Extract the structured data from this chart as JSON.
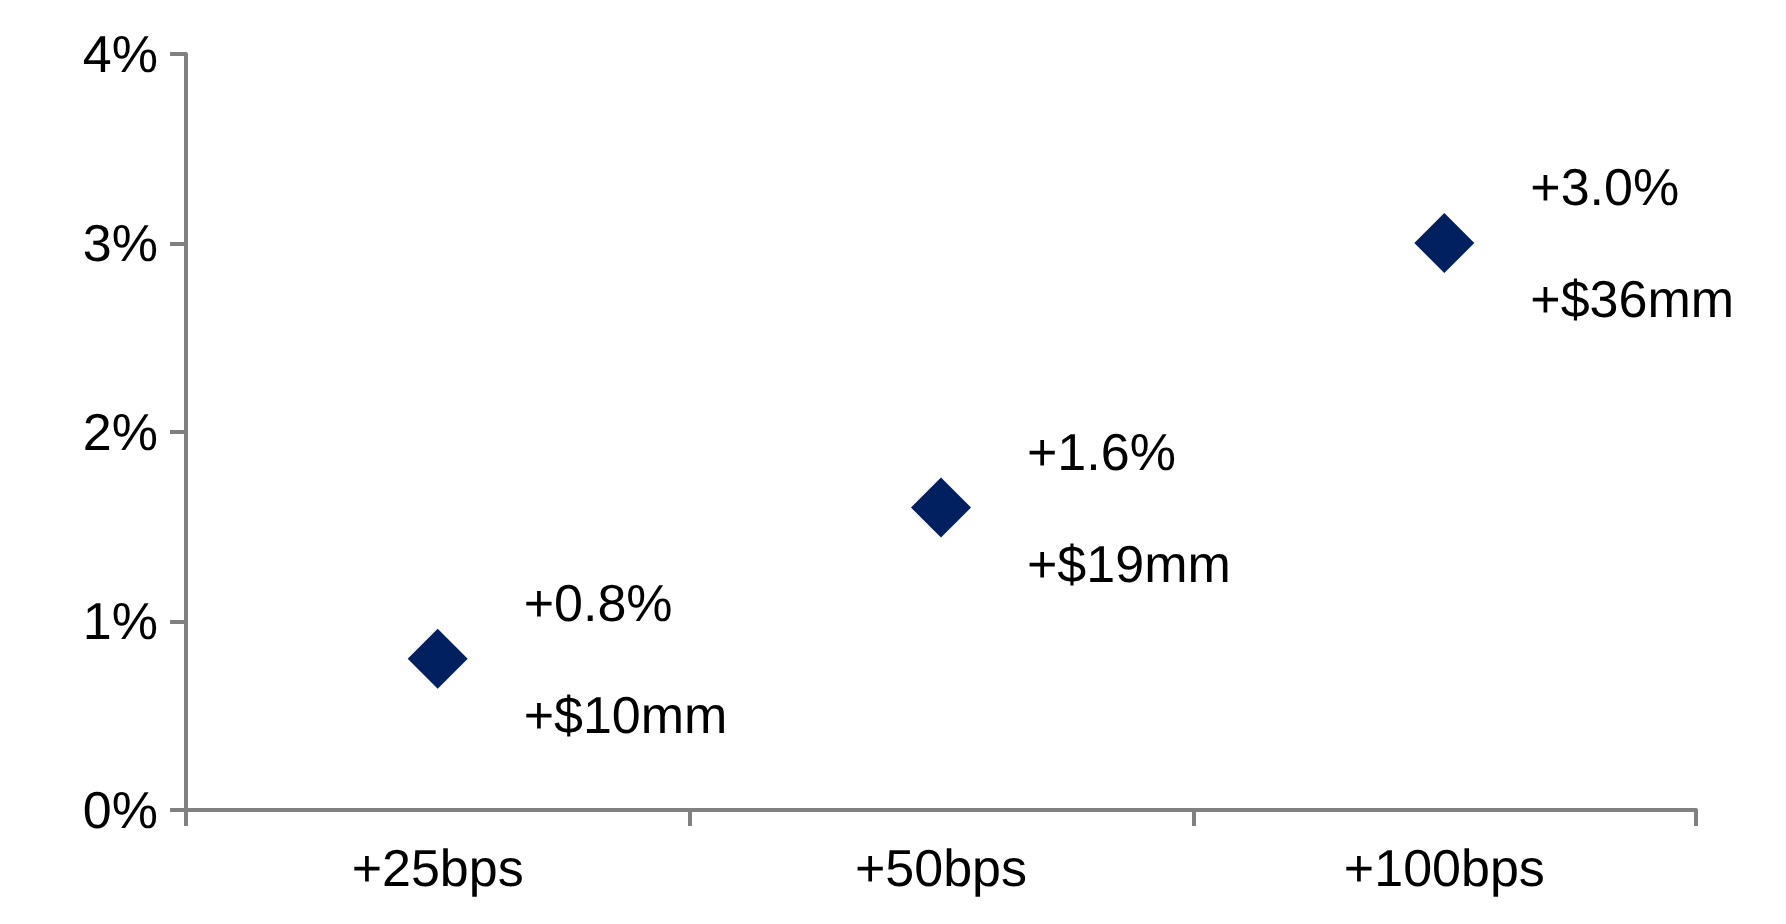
{
  "chart_data": {
    "type": "scatter",
    "categories": [
      "+25bps",
      "+50bps",
      "+100bps"
    ],
    "values": [
      0.8,
      1.6,
      3.0
    ],
    "color": "#002060",
    "value_labels": [
      "+0.8%\n+$10mm",
      "+1.6%\n+$19mm",
      "+3.0%\n+$36mm"
    ],
    "ylim": [
      0,
      4
    ],
    "yticks": [
      {
        "value": 0,
        "label": "0%"
      },
      {
        "value": 1,
        "label": "1%"
      },
      {
        "value": 2,
        "label": "2%"
      },
      {
        "value": 3,
        "label": "3%"
      },
      {
        "value": 4,
        "label": "4%"
      }
    ],
    "marker": "diamond",
    "grid": false
  }
}
